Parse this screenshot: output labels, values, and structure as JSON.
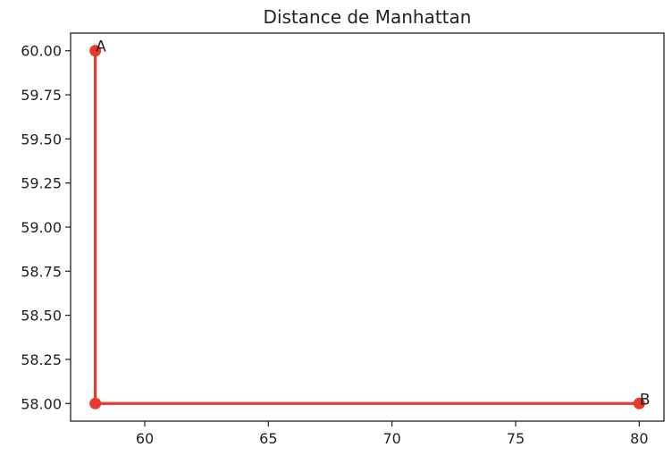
{
  "chart_data": {
    "type": "line",
    "title": "Distance de Manhattan",
    "xlabel": "",
    "ylabel": "",
    "xlim": [
      57.0,
      81.0
    ],
    "ylim": [
      57.9,
      60.1
    ],
    "x_ticks": [
      60,
      65,
      70,
      75,
      80
    ],
    "x_tick_labels": [
      "60",
      "65",
      "70",
      "75",
      "80"
    ],
    "y_ticks": [
      58.0,
      58.25,
      58.5,
      58.75,
      59.0,
      59.25,
      59.5,
      59.75,
      60.0
    ],
    "y_tick_labels": [
      "58.00",
      "58.25",
      "58.50",
      "58.75",
      "59.00",
      "59.25",
      "59.50",
      "59.75",
      "60.00"
    ],
    "grid": false,
    "series": [
      {
        "color": "#e8392b",
        "x": [
          58,
          58,
          80
        ],
        "y": [
          60,
          58,
          58
        ]
      }
    ],
    "annotations": [
      {
        "text": "A",
        "x": 58,
        "y": 60
      },
      {
        "text": "B",
        "x": 80,
        "y": 58
      }
    ]
  }
}
